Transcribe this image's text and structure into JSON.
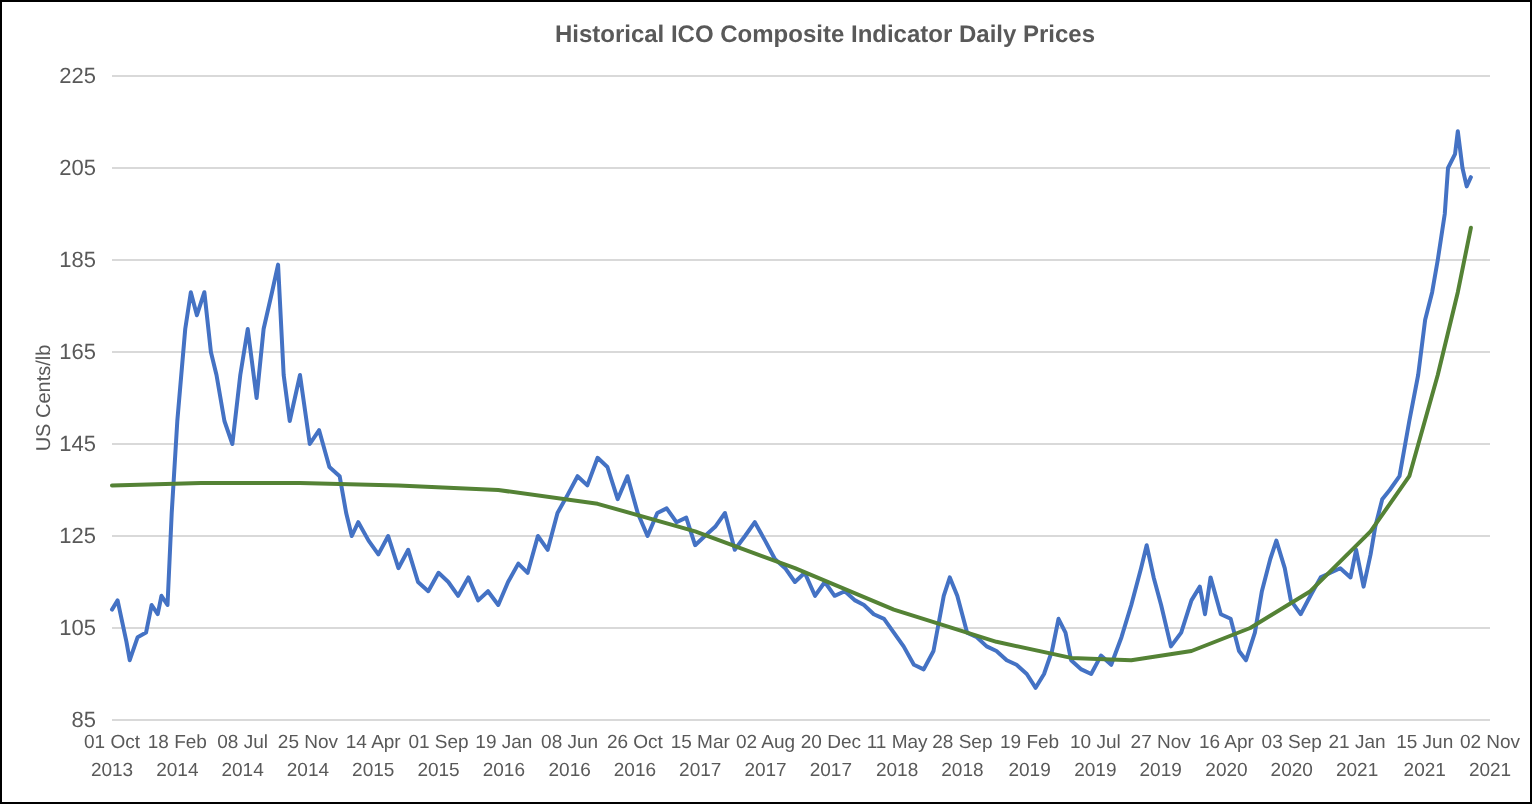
{
  "chart_data": {
    "type": "line",
    "title": "Historical ICO Composite Indicator Daily Prices",
    "ylabel": "US Cents/lb",
    "ylim": [
      85,
      225
    ],
    "yticks": [
      85,
      105,
      125,
      145,
      165,
      185,
      205,
      225
    ],
    "grid": "y",
    "marker": "none",
    "line_style": "solid",
    "xlim": [
      "2013-10-01",
      "2021-11-02"
    ],
    "xticks": [
      {
        "value": "2013-10-01",
        "label": "01 Oct 2013"
      },
      {
        "value": "2014-02-18",
        "label": "18 Feb 2014"
      },
      {
        "value": "2014-07-08",
        "label": "08 Jul 2014"
      },
      {
        "value": "2014-11-25",
        "label": "25 Nov 2014"
      },
      {
        "value": "2015-04-14",
        "label": "14 Apr 2015"
      },
      {
        "value": "2015-09-01",
        "label": "01 Sep 2015"
      },
      {
        "value": "2016-01-19",
        "label": "19 Jan 2016"
      },
      {
        "value": "2016-06-08",
        "label": "08 Jun 2016"
      },
      {
        "value": "2016-10-26",
        "label": "26 Oct 2016"
      },
      {
        "value": "2017-03-15",
        "label": "15 Mar 2017"
      },
      {
        "value": "2017-08-02",
        "label": "02 Aug 2017"
      },
      {
        "value": "2017-12-20",
        "label": "20 Dec 2017"
      },
      {
        "value": "2018-05-11",
        "label": "11 May 2018"
      },
      {
        "value": "2018-09-28",
        "label": "28 Sep 2018"
      },
      {
        "value": "2019-02-19",
        "label": "19 Feb 2019"
      },
      {
        "value": "2019-07-10",
        "label": "10 Jul 2019"
      },
      {
        "value": "2019-11-27",
        "label": "27 Nov 2019"
      },
      {
        "value": "2020-04-16",
        "label": "16 Apr 2020"
      },
      {
        "value": "2020-09-03",
        "label": "03 Sep 2020"
      },
      {
        "value": "2021-01-21",
        "label": "21 Jan 2021"
      },
      {
        "value": "2021-06-15",
        "label": "15 Jun 2021"
      },
      {
        "value": "2021-11-02",
        "label": "02 Nov 2021"
      }
    ],
    "series": [
      {
        "color": "#4472c4",
        "x": [
          "2013-10-01",
          "2013-10-13",
          "2013-11-01",
          "2013-11-08",
          "2013-11-25",
          "2013-12-13",
          "2013-12-25",
          "2014-01-07",
          "2014-01-15",
          "2014-01-28",
          "2014-02-06",
          "2014-02-18",
          "2014-03-07",
          "2014-03-19",
          "2014-04-01",
          "2014-04-17",
          "2014-05-01",
          "2014-05-13",
          "2014-05-30",
          "2014-06-16",
          "2014-07-03",
          "2014-07-19",
          "2014-08-07",
          "2014-08-22",
          "2014-09-09",
          "2014-09-22",
          "2014-10-04",
          "2014-10-17",
          "2014-11-08",
          "2014-11-29",
          "2014-12-19",
          "2015-01-10",
          "2015-02-01",
          "2015-02-15",
          "2015-02-27",
          "2015-03-13",
          "2015-04-04",
          "2015-04-25",
          "2015-05-16",
          "2015-06-07",
          "2015-06-28",
          "2015-07-19",
          "2015-08-10",
          "2015-09-01",
          "2015-09-22",
          "2015-10-13",
          "2015-11-04",
          "2015-11-25",
          "2015-12-16",
          "2016-01-07",
          "2016-01-28",
          "2016-02-19",
          "2016-03-10",
          "2016-04-01",
          "2016-04-22",
          "2016-05-13",
          "2016-06-04",
          "2016-06-25",
          "2016-07-16",
          "2016-08-07",
          "2016-08-28",
          "2016-09-19",
          "2016-10-10",
          "2016-11-01",
          "2016-11-22",
          "2016-12-13",
          "2017-01-02",
          "2017-01-23",
          "2017-02-13",
          "2017-03-04",
          "2017-03-25",
          "2017-04-16",
          "2017-05-07",
          "2017-05-28",
          "2017-06-19",
          "2017-07-10",
          "2017-08-01",
          "2017-08-22",
          "2017-09-13",
          "2017-10-04",
          "2017-10-25",
          "2017-11-16",
          "2017-12-07",
          "2017-12-28",
          "2018-01-19",
          "2018-02-10",
          "2018-03-01",
          "2018-03-22",
          "2018-04-13",
          "2018-05-04",
          "2018-05-25",
          "2018-06-16",
          "2018-07-07",
          "2018-07-28",
          "2018-08-19",
          "2018-09-01",
          "2018-09-17",
          "2018-10-08",
          "2018-10-29",
          "2018-11-19",
          "2018-12-10",
          "2019-01-01",
          "2019-01-22",
          "2019-02-13",
          "2019-03-04",
          "2019-03-22",
          "2019-04-08",
          "2019-04-22",
          "2019-05-07",
          "2019-05-19",
          "2019-06-10",
          "2019-07-01",
          "2019-07-22",
          "2019-08-13",
          "2019-09-04",
          "2019-09-25",
          "2019-10-16",
          "2019-10-28",
          "2019-11-12",
          "2019-11-28",
          "2019-12-19",
          "2020-01-10",
          "2020-02-01",
          "2020-02-19",
          "2020-03-01",
          "2020-03-13",
          "2020-04-04",
          "2020-04-25",
          "2020-05-13",
          "2020-05-28",
          "2020-06-16",
          "2020-07-01",
          "2020-07-19",
          "2020-08-01",
          "2020-08-19",
          "2020-09-01",
          "2020-09-22",
          "2020-10-13",
          "2020-11-04",
          "2020-11-25",
          "2020-12-16",
          "2021-01-07",
          "2021-01-19",
          "2021-02-04",
          "2021-02-19",
          "2021-03-01",
          "2021-03-16",
          "2021-04-01",
          "2021-04-22",
          "2021-05-13",
          "2021-06-01",
          "2021-06-16",
          "2021-07-01",
          "2021-07-13",
          "2021-07-28",
          "2021-08-04",
          "2021-08-19",
          "2021-08-25",
          "2021-09-04",
          "2021-09-13",
          "2021-09-22"
        ],
        "values": [
          109,
          111,
          102,
          98,
          103,
          104,
          110,
          108,
          112,
          110,
          130,
          150,
          170,
          178,
          173,
          178,
          165,
          160,
          150,
          145,
          160,
          170,
          155,
          170,
          178,
          184,
          160,
          150,
          160,
          145,
          148,
          140,
          138,
          130,
          125,
          128,
          124,
          121,
          125,
          118,
          122,
          115,
          113,
          117,
          115,
          112,
          116,
          111,
          113,
          110,
          115,
          119,
          117,
          125,
          122,
          130,
          134,
          138,
          136,
          142,
          140,
          133,
          138,
          130,
          125,
          130,
          131,
          128,
          129,
          123,
          125,
          127,
          130,
          122,
          125,
          128,
          124,
          120,
          118,
          115,
          117,
          112,
          115,
          112,
          113,
          111,
          110,
          108,
          107,
          104,
          101,
          97,
          96,
          100,
          112,
          116,
          112,
          104,
          103,
          101,
          100,
          98,
          97,
          95,
          92,
          95,
          100,
          107,
          104,
          98,
          96,
          95,
          99,
          97,
          103,
          110,
          118,
          123,
          116,
          110,
          101,
          104,
          111,
          114,
          108,
          116,
          108,
          107,
          100,
          98,
          104,
          113,
          120,
          124,
          118,
          111,
          108,
          112,
          116,
          117,
          118,
          116,
          122,
          114,
          121,
          127,
          133,
          135,
          138,
          150,
          160,
          172,
          178,
          185,
          195,
          205,
          208,
          213,
          205,
          201,
          203
        ]
      },
      {
        "color": "#548235",
        "x": [
          "2013-10-01",
          "2014-04-10",
          "2014-11-08",
          "2015-06-07",
          "2016-01-07",
          "2016-08-07",
          "2017-03-04",
          "2017-10-04",
          "2018-05-04",
          "2018-12-10",
          "2019-05-19",
          "2019-09-25",
          "2020-02-01",
          "2020-06-06",
          "2020-10-13",
          "2021-02-19",
          "2021-05-13",
          "2021-07-13",
          "2021-08-25",
          "2021-09-22"
        ],
        "values": [
          136,
          136.5,
          136.5,
          136,
          135,
          132,
          126,
          118,
          109,
          102,
          98.5,
          98,
          100,
          105,
          113,
          126,
          138,
          160,
          178,
          192
        ]
      }
    ]
  }
}
